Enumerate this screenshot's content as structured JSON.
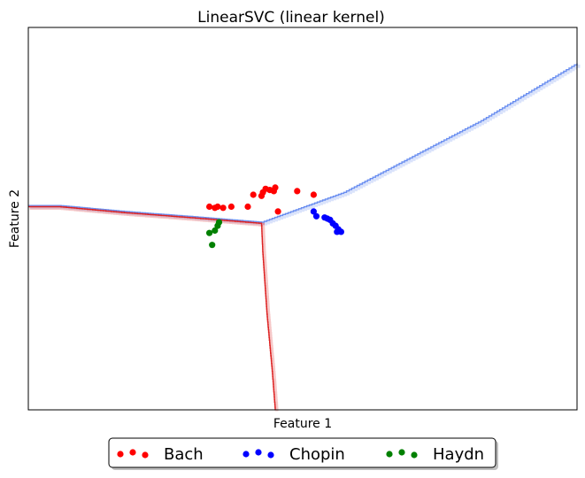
{
  "chart_data": {
    "type": "scatter",
    "title": "LinearSVC (linear kernel)",
    "xlabel": "Feature 1",
    "ylabel": "Feature 2",
    "xlim": [
      -10,
      10
    ],
    "ylim": [
      -8,
      8
    ],
    "grid": false,
    "ticks": false,
    "legend_placement": "bottom-center",
    "series": [
      {
        "name": "Bach",
        "color": "#ff0000",
        "points": [
          [
            -3.4,
            0.5
          ],
          [
            -3.2,
            0.45
          ],
          [
            -3.1,
            0.5
          ],
          [
            -2.9,
            0.45
          ],
          [
            -2.6,
            0.5
          ],
          [
            -2.0,
            0.5
          ],
          [
            -1.8,
            1.0
          ],
          [
            -1.5,
            0.95
          ],
          [
            -1.45,
            1.1
          ],
          [
            -1.35,
            1.25
          ],
          [
            -1.2,
            1.2
          ],
          [
            -1.05,
            1.15
          ],
          [
            -1.0,
            1.3
          ],
          [
            -0.9,
            0.3
          ],
          [
            -0.2,
            1.15
          ],
          [
            0.4,
            1.0
          ]
        ]
      },
      {
        "name": "Chopin",
        "color": "#0000ff",
        "points": [
          [
            0.4,
            0.3
          ],
          [
            0.5,
            0.1
          ],
          [
            0.8,
            0.05
          ],
          [
            0.9,
            0.0
          ],
          [
            1.0,
            -0.05
          ],
          [
            1.1,
            -0.2
          ],
          [
            1.2,
            -0.3
          ],
          [
            1.3,
            -0.45
          ],
          [
            1.25,
            -0.55
          ],
          [
            1.4,
            -0.55
          ]
        ]
      },
      {
        "name": "Haydn",
        "color": "#008000",
        "points": [
          [
            -3.3,
            -1.1
          ],
          [
            -3.4,
            -0.6
          ],
          [
            -3.2,
            -0.5
          ],
          [
            -3.1,
            -0.3
          ],
          [
            -3.05,
            -0.15
          ]
        ]
      }
    ],
    "boundaries": [
      {
        "color": "#6b8ff0",
        "points": [
          [
            -10,
            0.55
          ],
          [
            -8.9,
            0.55
          ],
          [
            -6.5,
            0.3
          ],
          [
            -4.2,
            0.1
          ],
          [
            -1.5,
            -0.15
          ],
          [
            1.5,
            1.1
          ],
          [
            4.0,
            2.6
          ],
          [
            6.5,
            4.1
          ],
          [
            10,
            6.5
          ]
        ]
      },
      {
        "color": "#dd2222",
        "points": [
          [
            -10,
            0.5
          ],
          [
            -8.9,
            0.5
          ],
          [
            -6.5,
            0.25
          ],
          [
            -4.2,
            0.05
          ],
          [
            -1.5,
            -0.2
          ]
        ]
      },
      {
        "color": "#dd2222",
        "points": [
          [
            -1.5,
            -0.2
          ],
          [
            -1.45,
            -1.5
          ],
          [
            -1.3,
            -4.0
          ],
          [
            -1.1,
            -6.5
          ],
          [
            -1.0,
            -8
          ]
        ]
      }
    ]
  }
}
